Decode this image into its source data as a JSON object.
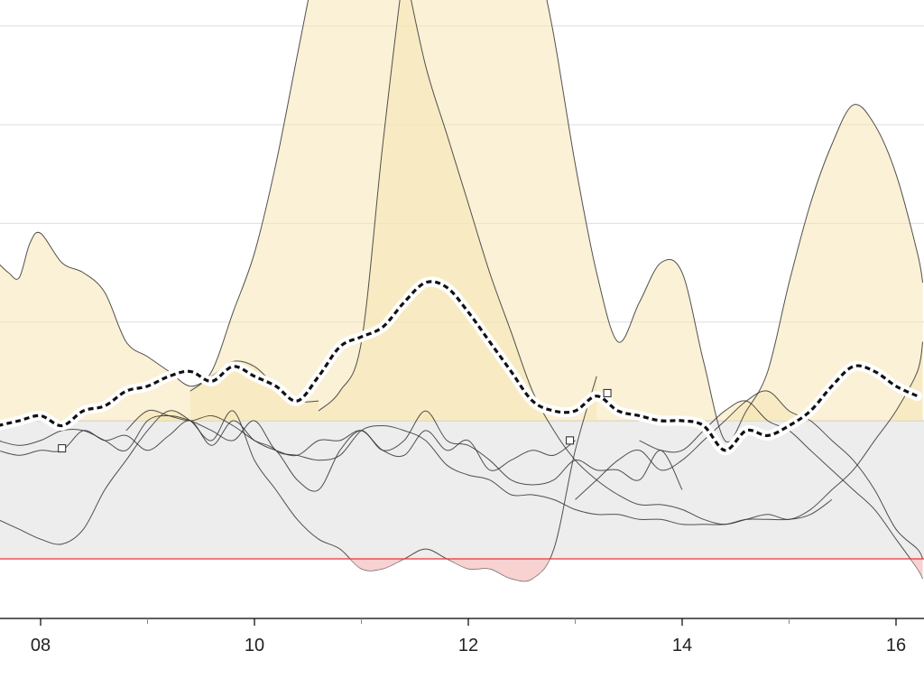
{
  "chart_data": {
    "type": "line",
    "title": "",
    "xlabel": "",
    "ylabel": "",
    "x_ticks": [
      "08",
      "10",
      "12",
      "14",
      "16"
    ],
    "xlim": [
      7.6,
      16.25
    ],
    "ylim": [
      -2.3,
      8.6
    ],
    "y_gridlines": [
      -2,
      -1,
      0,
      1,
      2,
      3,
      4,
      5,
      6,
      7,
      8
    ],
    "baseline": 0,
    "lower_threshold": -1.4,
    "colors": {
      "baseline_band": "#ededed",
      "positive_fill": "#f6e6b4",
      "below_threshold_fill": "#f6c6c6",
      "threshold_line": "#ee3333",
      "mean_line": "#111111",
      "member_line": "#333333",
      "grid": "#dddddd",
      "axis": "#000000"
    },
    "mean": {
      "x": [
        7.6,
        7.8,
        8.0,
        8.2,
        8.4,
        8.6,
        8.8,
        9.0,
        9.2,
        9.4,
        9.6,
        9.8,
        10.0,
        10.2,
        10.4,
        10.6,
        10.8,
        11.0,
        11.2,
        11.4,
        11.6,
        11.8,
        12.0,
        12.2,
        12.4,
        12.6,
        12.8,
        13.0,
        13.2,
        13.4,
        13.6,
        13.8,
        14.0,
        14.2,
        14.4,
        14.6,
        14.8,
        15.0,
        15.2,
        15.4,
        15.6,
        15.8,
        16.0,
        16.2
      ],
      "y": [
        -0.05,
        0.0,
        0.05,
        -0.05,
        0.1,
        0.15,
        0.3,
        0.35,
        0.45,
        0.5,
        0.4,
        0.55,
        0.45,
        0.35,
        0.2,
        0.45,
        0.75,
        0.85,
        0.95,
        1.2,
        1.4,
        1.35,
        1.1,
        0.8,
        0.5,
        0.2,
        0.1,
        0.1,
        0.25,
        0.1,
        0.05,
        0.0,
        0.0,
        -0.05,
        -0.3,
        -0.1,
        -0.15,
        -0.05,
        0.1,
        0.35,
        0.55,
        0.5,
        0.35,
        0.25
      ]
    },
    "series": [
      {
        "x": [
          7.6,
          7.7,
          7.8,
          7.9,
          8.0,
          8.2,
          8.4,
          8.6,
          8.8,
          9.0,
          9.2,
          9.4,
          9.6,
          9.8,
          10.0,
          10.2,
          10.4,
          10.6
        ],
        "y": [
          1.6,
          1.5,
          1.45,
          1.8,
          1.9,
          1.6,
          1.5,
          1.3,
          0.8,
          0.65,
          0.5,
          0.35,
          0.45,
          0.6,
          0.55,
          0.35,
          0.2,
          0.2
        ]
      },
      {
        "x": [
          9.4,
          9.6,
          9.8,
          10.0,
          10.2,
          10.4,
          10.6,
          10.8,
          11.0,
          11.2,
          11.4,
          11.6,
          11.8,
          12.0,
          12.2,
          12.4,
          12.6,
          12.8,
          13.0,
          13.2,
          13.4,
          13.6,
          13.8,
          14.0,
          14.2,
          14.4,
          14.6,
          14.8,
          15.0,
          15.2,
          15.4,
          15.6,
          15.8,
          16.0,
          16.2,
          16.25
        ],
        "y": [
          0.3,
          0.5,
          1.1,
          1.7,
          2.6,
          3.7,
          4.8,
          5.9,
          6.3,
          5.6,
          4.6,
          3.6,
          2.9,
          2.2,
          1.5,
          0.9,
          0.3,
          -0.1,
          -0.4,
          -0.6,
          -0.75,
          -0.85,
          -0.85,
          -0.9,
          -1.0,
          -1.05,
          -1.0,
          -0.95,
          -1.0,
          -0.9,
          -0.7,
          -0.5,
          -0.2,
          0.1,
          0.5,
          0.8
        ]
      },
      {
        "x": [
          10.6,
          10.8,
          11.0,
          11.2,
          11.4,
          11.6,
          11.8,
          12.0,
          12.2,
          12.4,
          12.6,
          12.8,
          13.0,
          13.2,
          13.4,
          13.6,
          13.8,
          14.0,
          14.2,
          14.4,
          14.6,
          14.8,
          15.0,
          15.2,
          15.4,
          15.6,
          15.8,
          16.0,
          16.2,
          16.25
        ],
        "y": [
          0.1,
          0.3,
          0.8,
          2.8,
          4.6,
          6.0,
          7.3,
          8.0,
          7.8,
          6.4,
          5.0,
          3.9,
          2.6,
          1.5,
          0.8,
          1.2,
          1.6,
          1.5,
          0.6,
          -0.2,
          0.1,
          0.5,
          1.4,
          2.2,
          2.8,
          3.2,
          3.0,
          2.5,
          1.7,
          1.4
        ]
      },
      {
        "x": [
          7.6,
          7.8,
          8.0,
          8.2,
          8.4,
          8.6,
          8.8,
          9.0,
          9.2,
          9.4,
          9.6,
          9.8,
          10.0,
          10.2,
          10.4,
          10.6,
          10.8,
          11.0,
          11.2,
          11.4,
          11.6,
          11.8,
          12.0,
          12.2,
          12.4,
          12.6,
          12.8,
          13.0,
          13.2
        ],
        "y": [
          -1.0,
          -1.1,
          -1.2,
          -1.25,
          -1.1,
          -0.7,
          -0.4,
          -0.1,
          0.1,
          0.0,
          -0.2,
          0.1,
          -0.4,
          -0.7,
          -1.0,
          -1.2,
          -1.3,
          -1.5,
          -1.5,
          -1.4,
          -1.3,
          -1.4,
          -1.5,
          -1.5,
          -1.6,
          -1.6,
          -1.3,
          -0.3,
          0.45
        ]
      },
      {
        "x": [
          7.6,
          7.8,
          8.0,
          8.2,
          8.4,
          8.6,
          8.8,
          9.0,
          9.2,
          9.4,
          9.6,
          9.8,
          10.0,
          10.2,
          10.4,
          10.6,
          10.8,
          11.0,
          11.2,
          11.4,
          11.6,
          11.8,
          12.0,
          12.2,
          12.4,
          12.6,
          12.8,
          13.0,
          13.2,
          13.4,
          13.6,
          13.8,
          14.0,
          14.2,
          14.4,
          14.6,
          14.8,
          15.0,
          15.2,
          15.4
        ],
        "y": [
          -0.2,
          -0.25,
          -0.2,
          -0.1,
          -0.1,
          -0.2,
          -0.3,
          0.0,
          0.05,
          0.0,
          -0.1,
          -0.2,
          0.0,
          -0.3,
          -0.35,
          -0.4,
          -0.35,
          -0.1,
          -0.05,
          -0.1,
          -0.2,
          -0.45,
          -0.55,
          -0.6,
          -0.75,
          -0.75,
          -0.8,
          -0.9,
          -0.95,
          -0.95,
          -1.0,
          -1.0,
          -1.05,
          -1.05,
          -1.05,
          -1.0,
          -1.0,
          -1.0,
          -0.95,
          -0.8
        ]
      },
      {
        "x": [
          7.6,
          7.8,
          8.0,
          8.2,
          8.4,
          8.6,
          8.8,
          9.0,
          9.2,
          9.4,
          9.6,
          9.8,
          10.0,
          10.2,
          10.4,
          10.6,
          10.8,
          11.0,
          11.2,
          11.4,
          11.6,
          11.8,
          12.0,
          12.2,
          12.4,
          12.6,
          12.8,
          13.0
        ],
        "y": [
          -0.3,
          -0.35,
          -0.3,
          -0.3,
          -0.1,
          -0.2,
          -0.15,
          -0.3,
          -0.15,
          0.0,
          -0.25,
          0.0,
          -0.2,
          -0.3,
          -0.35,
          -0.2,
          -0.2,
          -0.1,
          -0.3,
          -0.35,
          -0.1,
          -0.3,
          -0.2,
          -0.5,
          -0.4,
          -0.3,
          -0.35,
          -0.2
        ]
      },
      {
        "x": [
          8.8,
          9.0,
          9.2,
          9.4,
          9.6,
          9.8,
          10.0,
          10.2,
          10.4,
          10.6,
          10.8,
          11.0,
          11.2,
          11.4,
          11.6,
          11.8,
          12.0,
          12.2,
          12.4,
          12.6,
          12.8,
          13.0,
          13.2,
          13.4,
          13.6,
          13.8,
          14.0
        ],
        "y": [
          -0.1,
          0.1,
          0.05,
          0.0,
          0.05,
          -0.05,
          -0.2,
          -0.3,
          -0.6,
          -0.7,
          -0.3,
          -0.1,
          -0.3,
          -0.2,
          0.1,
          -0.2,
          -0.25,
          -0.4,
          -0.6,
          -0.65,
          -0.6,
          -0.4,
          -0.5,
          -0.5,
          -0.6,
          -0.3,
          -0.7
        ]
      },
      {
        "x": [
          13.6,
          13.8,
          14.0,
          14.2,
          14.4,
          14.6,
          14.8,
          15.0,
          15.2,
          15.4,
          15.6,
          15.8,
          16.0,
          16.2,
          16.25
        ],
        "y": [
          -0.2,
          -0.3,
          -0.3,
          -0.1,
          0.1,
          0.2,
          0.0,
          -0.1,
          -0.3,
          -0.5,
          -0.7,
          -0.9,
          -1.2,
          -1.5,
          -1.6
        ]
      },
      {
        "x": [
          13.0,
          13.2,
          13.4,
          13.6,
          13.8,
          14.0,
          14.2,
          14.4,
          14.6,
          14.8,
          15.0,
          15.2,
          15.4,
          15.6,
          15.8,
          16.0,
          16.2,
          16.25
        ],
        "y": [
          -0.8,
          -0.6,
          -0.4,
          -0.3,
          -0.5,
          -0.4,
          -0.2,
          0.0,
          0.2,
          0.3,
          0.1,
          0.0,
          -0.2,
          -0.4,
          -0.7,
          -1.1,
          -1.3,
          -1.4
        ]
      }
    ],
    "marker_points": [
      {
        "x": 8.2,
        "y": -0.28
      },
      {
        "x": 12.95,
        "y": -0.2
      },
      {
        "x": 13.3,
        "y": 0.28
      }
    ]
  }
}
